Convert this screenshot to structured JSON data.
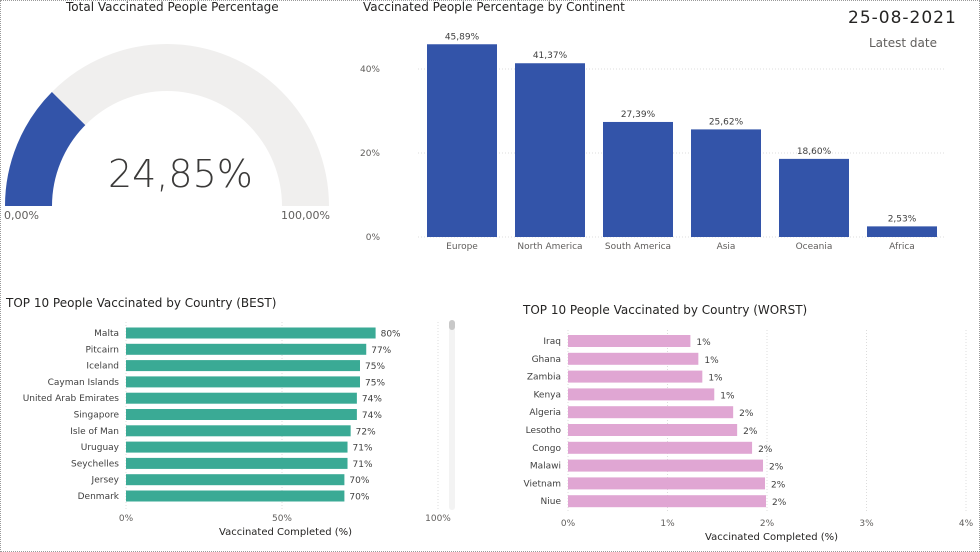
{
  "gauge": {
    "title": "Total Vaccinated People Percentage",
    "value_label": "24,85%",
    "value": 24.85,
    "min_label": "0,00%",
    "max_label": "100,00%",
    "colors": {
      "fill": "#3354a9",
      "track": "#f0efee"
    }
  },
  "date_card": {
    "date": "25-08-2021",
    "label": "Latest date"
  },
  "continent_chart": {
    "title": "Vaccinated People Percentage by Continent"
  },
  "best_chart": {
    "title": "TOP 10 People Vaccinated by Country (BEST)"
  },
  "worst_chart": {
    "title": "TOP 10 People Vaccinated by Country (WORST)"
  },
  "chart_data": [
    {
      "type": "gauge",
      "title": "Total Vaccinated People Percentage",
      "value": 24.85,
      "range": [
        0,
        100
      ]
    },
    {
      "type": "bar",
      "title": "Vaccinated People Percentage by Continent",
      "categories": [
        "Europe",
        "North America",
        "South America",
        "Asia",
        "Oceania",
        "Africa"
      ],
      "values": [
        45.89,
        41.37,
        27.39,
        25.62,
        18.6,
        2.53
      ],
      "value_labels": [
        "45,89%",
        "41,37%",
        "27,39%",
        "25,62%",
        "18,60%",
        "2,53%"
      ],
      "y_ticks": [
        "0%",
        "20%",
        "40%"
      ],
      "ylim": [
        0,
        50
      ],
      "color": "#3354a9"
    },
    {
      "type": "bar",
      "orientation": "horizontal",
      "title": "TOP 10 People Vaccinated by Country (BEST)",
      "categories": [
        "Malta",
        "Pitcairn",
        "Iceland",
        "Cayman Islands",
        "United Arab Emirates",
        "Singapore",
        "Isle of Man",
        "Uruguay",
        "Seychelles",
        "Jersey",
        "Denmark"
      ],
      "values": [
        80,
        77,
        75,
        75,
        74,
        74,
        72,
        71,
        71,
        70,
        70
      ],
      "value_labels": [
        "80%",
        "77%",
        "75%",
        "75%",
        "74%",
        "74%",
        "72%",
        "71%",
        "71%",
        "70%",
        "70%"
      ],
      "x_ticks": [
        "0%",
        "50%",
        "100%"
      ],
      "xlim": [
        0,
        100
      ],
      "xlabel": "Vaccinated Completed (%)",
      "color": "#3aaa95"
    },
    {
      "type": "bar",
      "orientation": "horizontal",
      "title": "TOP 10 People Vaccinated by Country (WORST)",
      "categories": [
        "Iraq",
        "Ghana",
        "Zambia",
        "Kenya",
        "Algeria",
        "Lesotho",
        "Congo",
        "Malawi",
        "Vietnam",
        "Niue"
      ],
      "values": [
        1.23,
        1.31,
        1.35,
        1.47,
        1.66,
        1.7,
        1.85,
        1.96,
        1.98,
        1.99
      ],
      "value_labels": [
        "1%",
        "1%",
        "1%",
        "1%",
        "2%",
        "2%",
        "2%",
        "2%",
        "2%",
        "2%"
      ],
      "x_ticks": [
        "0%",
        "1%",
        "2%",
        "3%",
        "4%"
      ],
      "xlim": [
        0,
        4
      ],
      "xlabel": "Vaccinated Completed (%)",
      "color": "#e0a6d3"
    }
  ]
}
